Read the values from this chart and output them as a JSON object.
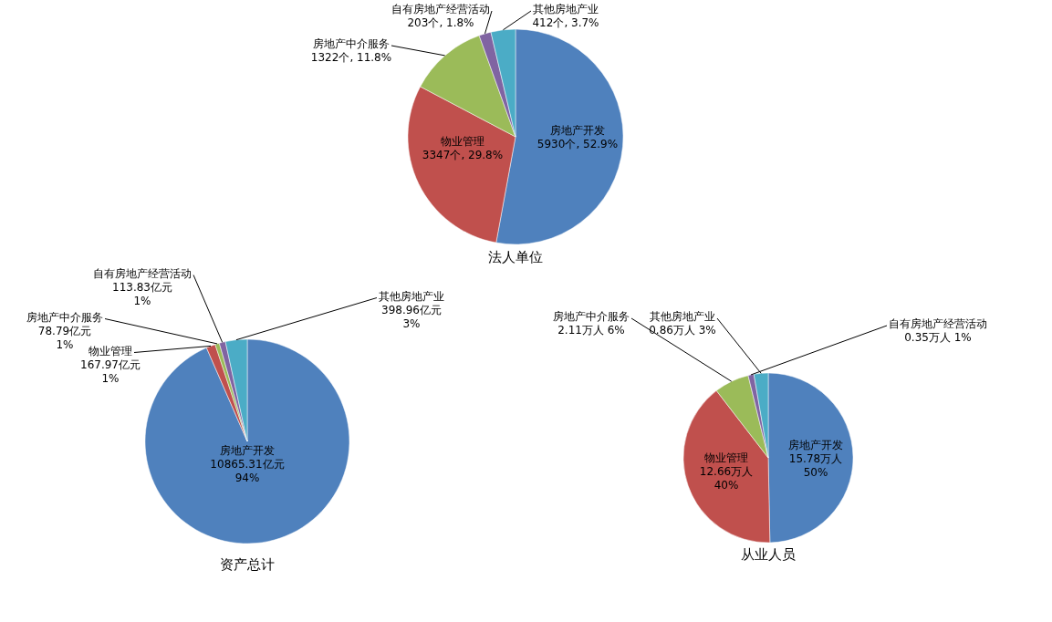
{
  "chart_data": [
    {
      "type": "pie",
      "title": "法人单位",
      "categories": [
        "房地产开发",
        "物业管理",
        "房地产中介服务",
        "自有房地产经营活动",
        "其他房地产业"
      ],
      "values": [
        5930,
        3347,
        1322,
        203,
        412
      ],
      "colors": [
        "#4f81bd",
        "#c0504d",
        "#9bbb59",
        "#8064a2",
        "#4bacc6"
      ],
      "value_labels": [
        "5930个, 52.9%",
        "3347个, 29.8%",
        "1322个, 11.8%",
        "203个, 1.8%",
        "412个, 3.7%"
      ]
    },
    {
      "type": "pie",
      "title": "资产总计",
      "categories": [
        "房地产开发",
        "物业管理",
        "房地产中介服务",
        "自有房地产经营活动",
        "其他房地产业"
      ],
      "values": [
        10865.31,
        167.97,
        78.79,
        113.83,
        398.96
      ],
      "colors": [
        "#4f81bd",
        "#c0504d",
        "#9bbb59",
        "#8064a2",
        "#4bacc6"
      ],
      "value_labels": [
        "10865.31亿元 94%",
        "167.97亿元 1%",
        "78.79亿元 1%",
        "113.83亿元 1%",
        "398.96亿元 3%"
      ]
    },
    {
      "type": "pie",
      "title": "从业人员",
      "categories": [
        "房地产开发",
        "物业管理",
        "房地产中介服务",
        "自有房地产经营活动",
        "其他房地产业"
      ],
      "values": [
        15.78,
        12.66,
        2.11,
        0.35,
        0.86
      ],
      "colors": [
        "#4f81bd",
        "#c0504d",
        "#9bbb59",
        "#8064a2",
        "#4bacc6"
      ],
      "value_labels": [
        "15.78万人 50%",
        "12.66万人 40%",
        "2.11万人 6%",
        "0.35万人 1%",
        "0.86万人 3%"
      ]
    }
  ]
}
